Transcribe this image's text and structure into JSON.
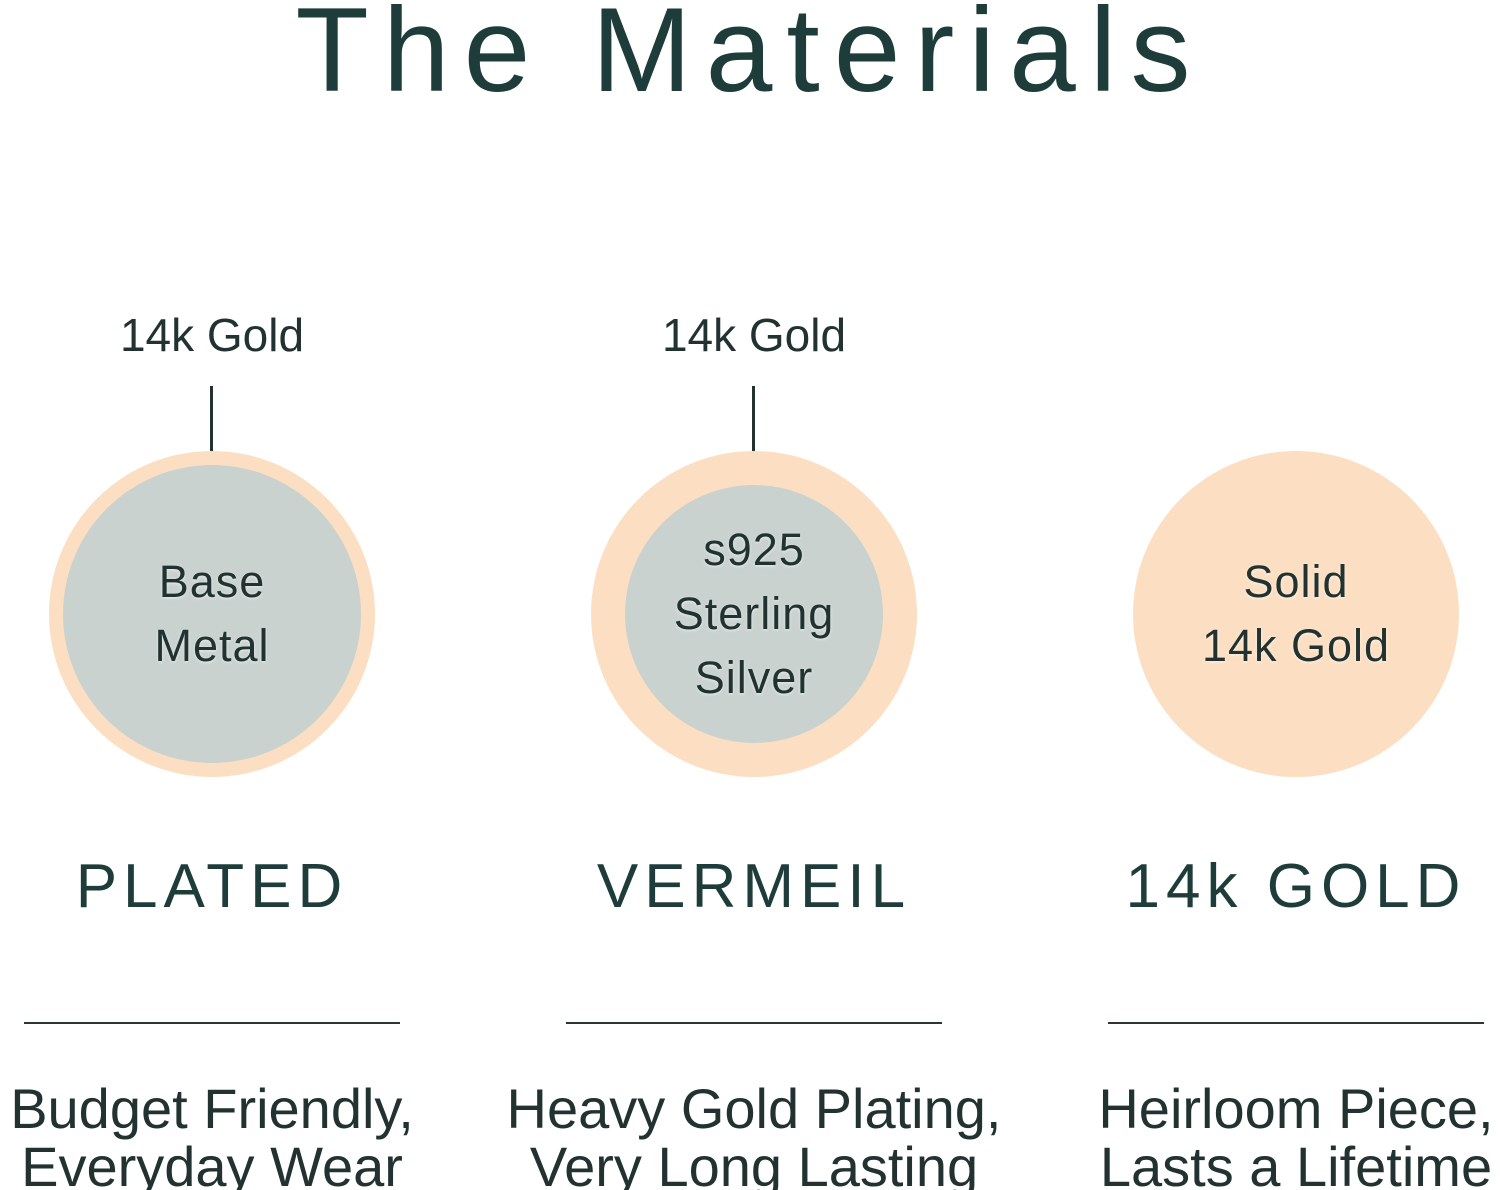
{
  "title": "The Materials",
  "colors": {
    "heading": "#1e3d3a",
    "body_text": "#223230",
    "peach": "#fcdfc2",
    "gray_core": "#c9d2cf",
    "divider": "#2b3533",
    "background": "#ffffff"
  },
  "columns": [
    {
      "id": "plated",
      "callout": "14k Gold",
      "circle_lines": [
        "Base",
        "Metal"
      ],
      "heading": "PLATED",
      "desc_line1": "Budget Friendly,",
      "desc_line2": "Everyday Wear"
    },
    {
      "id": "vermeil",
      "callout": "14k Gold",
      "circle_lines": [
        "s925",
        "Sterling",
        "Silver"
      ],
      "heading": "VERMEIL",
      "desc_line1": "Heavy Gold Plating,",
      "desc_line2": "Very Long Lasting"
    },
    {
      "id": "14k-gold",
      "callout": "",
      "circle_lines": [
        "Solid",
        "14k Gold"
      ],
      "heading": "14k GOLD",
      "desc_line1": "Heirloom Piece,",
      "desc_line2": "Lasts a Lifetime"
    }
  ]
}
